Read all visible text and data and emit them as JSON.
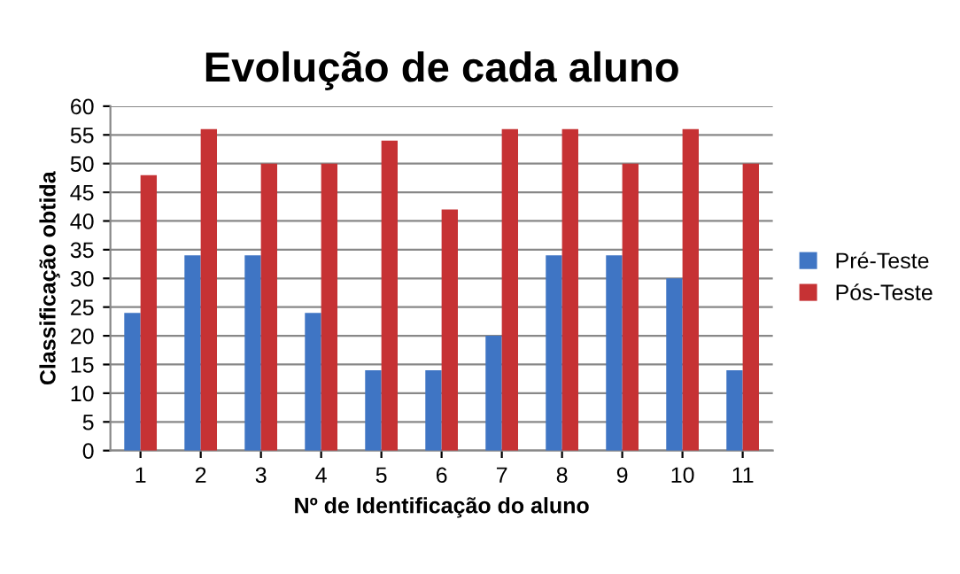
{
  "chart_data": {
    "type": "bar",
    "title": "Evolução de cada aluno",
    "xlabel": "Nº de Identificação do aluno",
    "ylabel": "Classificação obtida",
    "categories": [
      "1",
      "2",
      "3",
      "4",
      "5",
      "6",
      "7",
      "8",
      "9",
      "10",
      "11"
    ],
    "series": [
      {
        "name": "Pré-Teste",
        "color": "#3f75c4",
        "values": [
          24,
          34,
          34,
          24,
          14,
          14,
          20,
          34,
          34,
          30,
          14
        ]
      },
      {
        "name": "Pós-Teste",
        "color": "#c63234",
        "values": [
          48,
          56,
          50,
          50,
          54,
          42,
          56,
          56,
          50,
          56,
          50
        ]
      }
    ],
    "ylim": [
      0,
      60
    ],
    "yticks": [
      0,
      5,
      10,
      15,
      20,
      25,
      30,
      35,
      40,
      45,
      50,
      55,
      60
    ],
    "grid": "y",
    "legend": "right"
  }
}
